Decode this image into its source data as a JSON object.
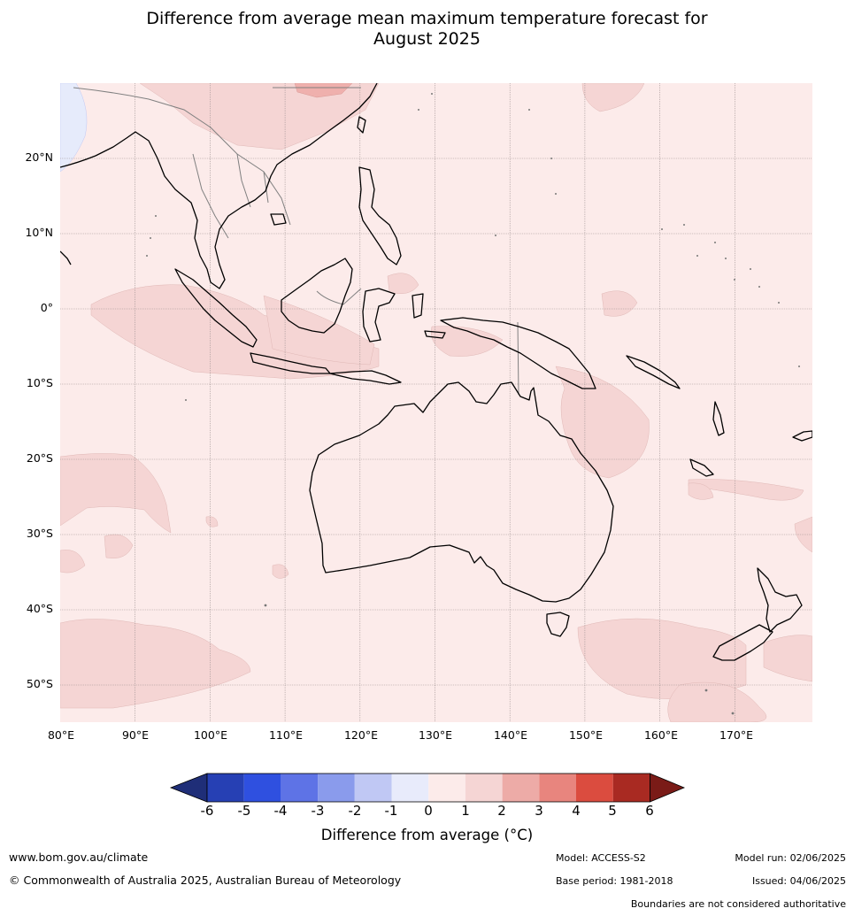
{
  "title": {
    "line1": "Difference from average mean maximum temperature forecast for",
    "line2": "August 2025"
  },
  "map": {
    "latitude_labels": [
      "20°N",
      "10°N",
      "0°",
      "10°S",
      "20°S",
      "30°S",
      "40°S",
      "50°S"
    ],
    "longitude_labels": [
      "80°E",
      "90°E",
      "100°E",
      "110°E",
      "120°E",
      "130°E",
      "140°E",
      "150°E",
      "160°E",
      "170°E"
    ],
    "background_class_color": "#fcebea",
    "anomaly_class_color": "#f5d5d4",
    "warm_spot_color": "#efb0ad",
    "cool_spot_color": "#e6ebfb",
    "coastline_color": "#000000",
    "border_color": "#808080"
  },
  "colorbar": {
    "tick_labels": [
      "-6",
      "-5",
      "-4",
      "-3",
      "-2",
      "-1",
      "0",
      "1",
      "2",
      "3",
      "4",
      "5",
      "6"
    ],
    "colors": [
      "#1f2e78",
      "#2640b4",
      "#2f50e0",
      "#5e73e6",
      "#8a9bec",
      "#c0c8f4",
      "#e8ebfb",
      "#fcebea",
      "#f5d5d4",
      "#edaba7",
      "#e8857e",
      "#db4c3f",
      "#a92a22",
      "#7a1b17"
    ],
    "title": "Difference from average (°C)"
  },
  "footer": {
    "website": "www.bom.gov.au/climate",
    "copyright": "© Commonwealth of Australia 2025, Australian Bureau of Meteorology",
    "model": "Model: ACCESS-S2",
    "base_period": "Base period: 1981-2018",
    "model_run": "Model run: 02/06/2025",
    "issued": "Issued: 04/06/2025",
    "disclaimer": "Boundaries are not considered authoritative"
  }
}
